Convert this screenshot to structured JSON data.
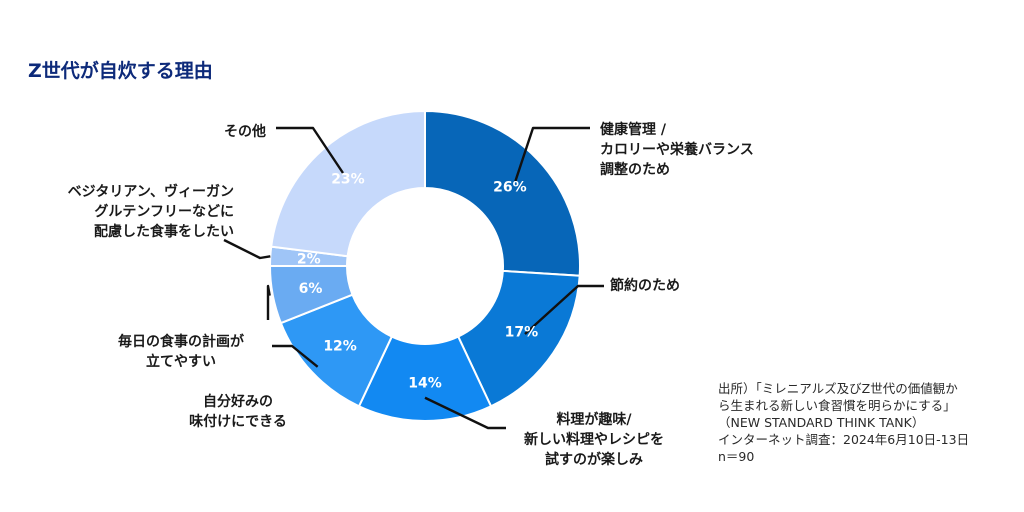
{
  "chart_data": {
    "type": "pie",
    "style": "donut",
    "title": "Z世代が自炊する理由",
    "slices": [
      {
        "label_lines": [
          "健康管理 /",
          "カロリーや栄養バランス",
          "調整のため"
        ],
        "value": 26,
        "value_label": "26%",
        "color": "#0766b8"
      },
      {
        "label_lines": [
          "節約のため"
        ],
        "value": 17,
        "value_label": "17%",
        "color": "#0a79d6"
      },
      {
        "label_lines": [
          "料理が趣味/",
          "新しい料理やレシピを",
          "試すのが楽しみ"
        ],
        "value": 14,
        "value_label": "14%",
        "color": "#1289f2"
      },
      {
        "label_lines": [
          "自分好みの",
          "味付けにできる"
        ],
        "value": 12,
        "value_label": "12%",
        "color": "#2e98f5"
      },
      {
        "label_lines": [
          "毎日の食事の計画が",
          "立てやすい"
        ],
        "value": 6,
        "value_label": "6%",
        "color": "#6aabf2"
      },
      {
        "label_lines": [
          "ベジタリアン、ヴィーガン",
          "グルテンフリーなどに",
          "配慮した食事をしたい"
        ],
        "value": 2,
        "value_label": "2%",
        "color": "#9fc5f7"
      },
      {
        "label_lines": [
          "その他"
        ],
        "value": 23,
        "value_label": "23%",
        "color": "#c6d9fb"
      }
    ]
  },
  "source": {
    "lines": [
      "出所）「ミレニアルズ及びZ世代の価値観か",
      "ら生まれる新しい食習慣を明らかにする」",
      "（NEW STANDARD THINK TANK）",
      "インターネット調査：2024年6月10日-13日",
      "n＝90"
    ]
  }
}
